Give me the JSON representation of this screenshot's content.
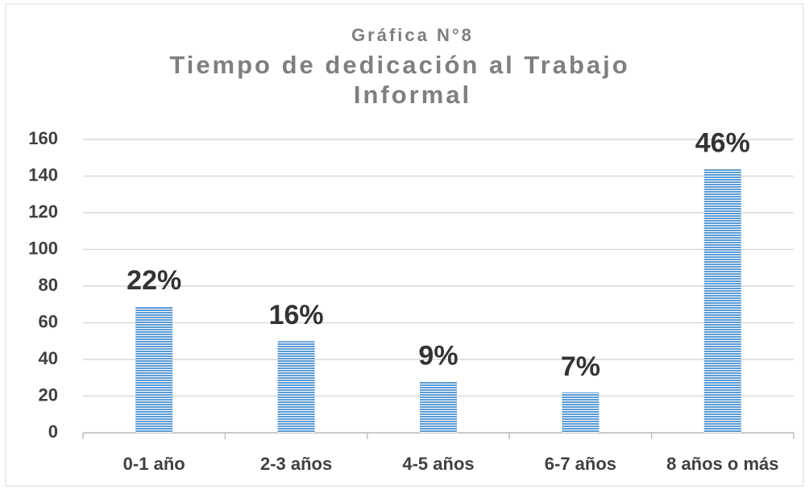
{
  "chart_data": {
    "type": "bar",
    "title": [
      "Gráfica N°8",
      "Tiempo de dedicación al Trabajo",
      "Informal"
    ],
    "categories": [
      "0-1 año",
      "2-3 años",
      "4-5 años",
      "6-7 años",
      "8 años o más"
    ],
    "values": [
      69,
      50,
      28,
      22,
      144
    ],
    "data_labels": [
      "22%",
      "16%",
      "9%",
      "7%",
      "46%"
    ],
    "color": "#5b9bd5",
    "ylim": [
      0,
      160
    ],
    "yticks": [
      0,
      20,
      40,
      60,
      80,
      100,
      120,
      140,
      160
    ],
    "grid": true
  }
}
